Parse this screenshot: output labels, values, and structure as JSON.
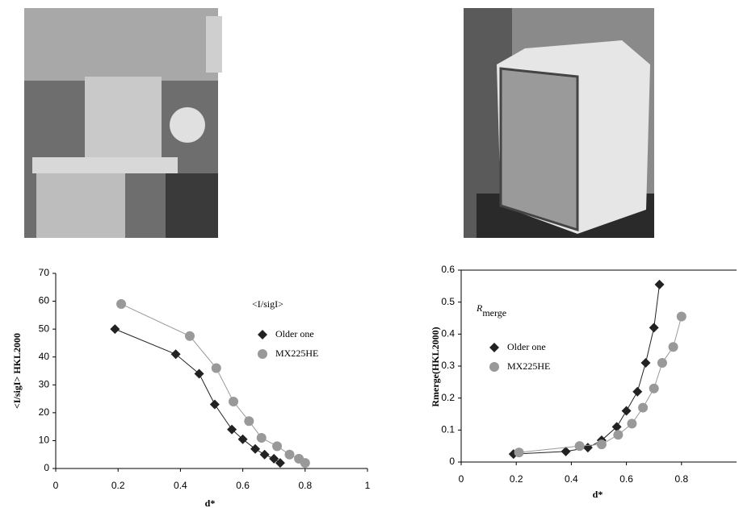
{
  "chart_data": [
    {
      "type": "line",
      "y_label": "<I/sigI> HKL2000",
      "x_label": "d*",
      "annotation": "<I/sigI>",
      "xlim": [
        0,
        1
      ],
      "xticks": [
        0,
        0.2,
        0.4,
        0.6,
        0.8,
        1
      ],
      "ylim": [
        0,
        70
      ],
      "yticks": [
        0,
        10,
        20,
        30,
        40,
        50,
        60,
        70
      ],
      "series": [
        {
          "name": "Older one",
          "color": "#222222",
          "marker": "diamond",
          "x": [
            0.19,
            0.385,
            0.46,
            0.51,
            0.565,
            0.6,
            0.64,
            0.67,
            0.7,
            0.72
          ],
          "values": [
            50,
            41,
            34,
            23,
            14,
            10.5,
            7,
            5,
            3.5,
            2
          ]
        },
        {
          "name": "MX225HE",
          "color": "#999999",
          "marker": "circle",
          "x": [
            0.21,
            0.43,
            0.515,
            0.57,
            0.62,
            0.66,
            0.71,
            0.75,
            0.78,
            0.8
          ],
          "values": [
            59,
            47.5,
            36,
            24,
            17,
            11,
            8,
            5,
            3.5,
            2
          ]
        }
      ]
    },
    {
      "type": "line",
      "y_label": "Rmerge(HKL2000)",
      "x_label": "d*",
      "annotation": "R",
      "annotation_subscript": "merge",
      "xlim": [
        0,
        1
      ],
      "xticks": [
        0,
        0.2,
        0.4,
        0.6,
        0.8
      ],
      "ylim": [
        0,
        0.6
      ],
      "yticks": [
        0,
        0.1,
        0.2,
        0.3,
        0.4,
        0.5,
        0.6
      ],
      "series": [
        {
          "name": "Older one",
          "color": "#222222",
          "marker": "diamond",
          "x": [
            0.19,
            0.38,
            0.46,
            0.51,
            0.565,
            0.6,
            0.64,
            0.67,
            0.7,
            0.72
          ],
          "values": [
            0.025,
            0.033,
            0.045,
            0.068,
            0.11,
            0.16,
            0.22,
            0.31,
            0.42,
            0.555
          ]
        },
        {
          "name": "MX225HE",
          "color": "#999999",
          "marker": "circle",
          "x": [
            0.21,
            0.43,
            0.51,
            0.57,
            0.62,
            0.66,
            0.7,
            0.73,
            0.77,
            0.8
          ],
          "values": [
            0.03,
            0.05,
            0.055,
            0.085,
            0.12,
            0.17,
            0.23,
            0.31,
            0.36,
            0.455
          ]
        }
      ]
    }
  ]
}
